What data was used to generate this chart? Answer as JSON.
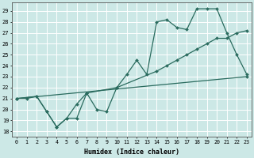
{
  "xlabel": "Humidex (Indice chaleur)",
  "bg_color": "#cce8e6",
  "grid_color": "#ffffff",
  "line_color": "#2a6b5e",
  "xlim": [
    -0.5,
    23.5
  ],
  "ylim": [
    17.5,
    29.8
  ],
  "yticks": [
    18,
    19,
    20,
    21,
    22,
    23,
    24,
    25,
    26,
    27,
    28,
    29
  ],
  "xticks": [
    0,
    1,
    2,
    3,
    4,
    5,
    6,
    7,
    8,
    9,
    10,
    11,
    12,
    13,
    14,
    15,
    16,
    17,
    18,
    19,
    20,
    21,
    22,
    23
  ],
  "line1_x": [
    0,
    1,
    2,
    3,
    4,
    5,
    6,
    7,
    8,
    9,
    10,
    11,
    12,
    13,
    14,
    15,
    16,
    17,
    18,
    19,
    20,
    21,
    22,
    23
  ],
  "line1_y": [
    21.0,
    21.0,
    21.2,
    19.8,
    18.4,
    19.2,
    19.2,
    21.5,
    20.0,
    19.8,
    22.0,
    23.2,
    24.5,
    23.2,
    28.0,
    28.2,
    27.5,
    27.3,
    29.2,
    29.2,
    29.2,
    27.0,
    25.0,
    23.2
  ],
  "line2_x": [
    0,
    2,
    3,
    4,
    5,
    6,
    7,
    10,
    14,
    15,
    16,
    17,
    18,
    19,
    20,
    21,
    22,
    23
  ],
  "line2_y": [
    21.0,
    21.2,
    19.8,
    18.4,
    19.2,
    20.5,
    21.5,
    22.0,
    23.5,
    24.0,
    24.5,
    25.0,
    25.5,
    26.0,
    26.5,
    26.5,
    27.0,
    27.2
  ],
  "line3_x": [
    0,
    23
  ],
  "line3_y": [
    21.0,
    23.0
  ]
}
